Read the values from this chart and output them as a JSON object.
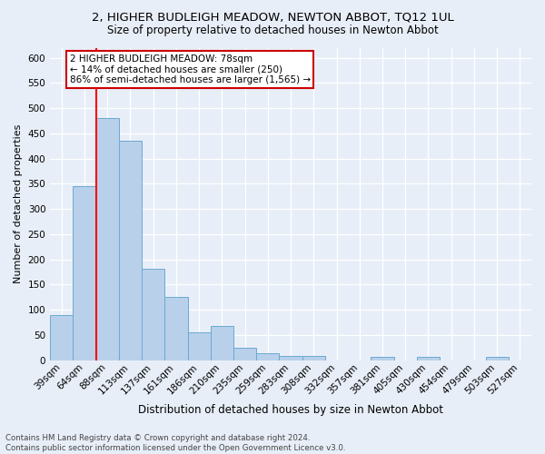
{
  "title": "2, HIGHER BUDLEIGH MEADOW, NEWTON ABBOT, TQ12 1UL",
  "subtitle": "Size of property relative to detached houses in Newton Abbot",
  "xlabel": "Distribution of detached houses by size in Newton Abbot",
  "ylabel": "Number of detached properties",
  "categories": [
    "39sqm",
    "64sqm",
    "88sqm",
    "113sqm",
    "137sqm",
    "161sqm",
    "186sqm",
    "210sqm",
    "235sqm",
    "259sqm",
    "283sqm",
    "308sqm",
    "332sqm",
    "357sqm",
    "381sqm",
    "405sqm",
    "430sqm",
    "454sqm",
    "479sqm",
    "503sqm",
    "527sqm"
  ],
  "values": [
    90,
    345,
    480,
    435,
    182,
    125,
    55,
    68,
    25,
    13,
    8,
    8,
    0,
    0,
    6,
    0,
    6,
    0,
    0,
    6,
    0
  ],
  "bar_color": "#b8d0ea",
  "bar_edge_color": "#6aaad4",
  "red_line_x": 1.5,
  "ylim": [
    0,
    620
  ],
  "yticks": [
    0,
    50,
    100,
    150,
    200,
    250,
    300,
    350,
    400,
    450,
    500,
    550,
    600
  ],
  "annotation_text": "2 HIGHER BUDLEIGH MEADOW: 78sqm\n← 14% of detached houses are smaller (250)\n86% of semi-detached houses are larger (1,565) →",
  "annotation_box_color": "#ffffff",
  "annotation_box_edge": "#cc0000",
  "footer_line1": "Contains HM Land Registry data © Crown copyright and database right 2024.",
  "footer_line2": "Contains public sector information licensed under the Open Government Licence v3.0.",
  "bg_color": "#e8eef8",
  "plot_bg_color": "#e8eef8",
  "title_fontsize": 9.5,
  "subtitle_fontsize": 8.5,
  "ylabel_fontsize": 8,
  "xlabel_fontsize": 8.5,
  "tick_fontsize": 7.5,
  "annotation_fontsize": 7.5,
  "footer_fontsize": 6.2
}
